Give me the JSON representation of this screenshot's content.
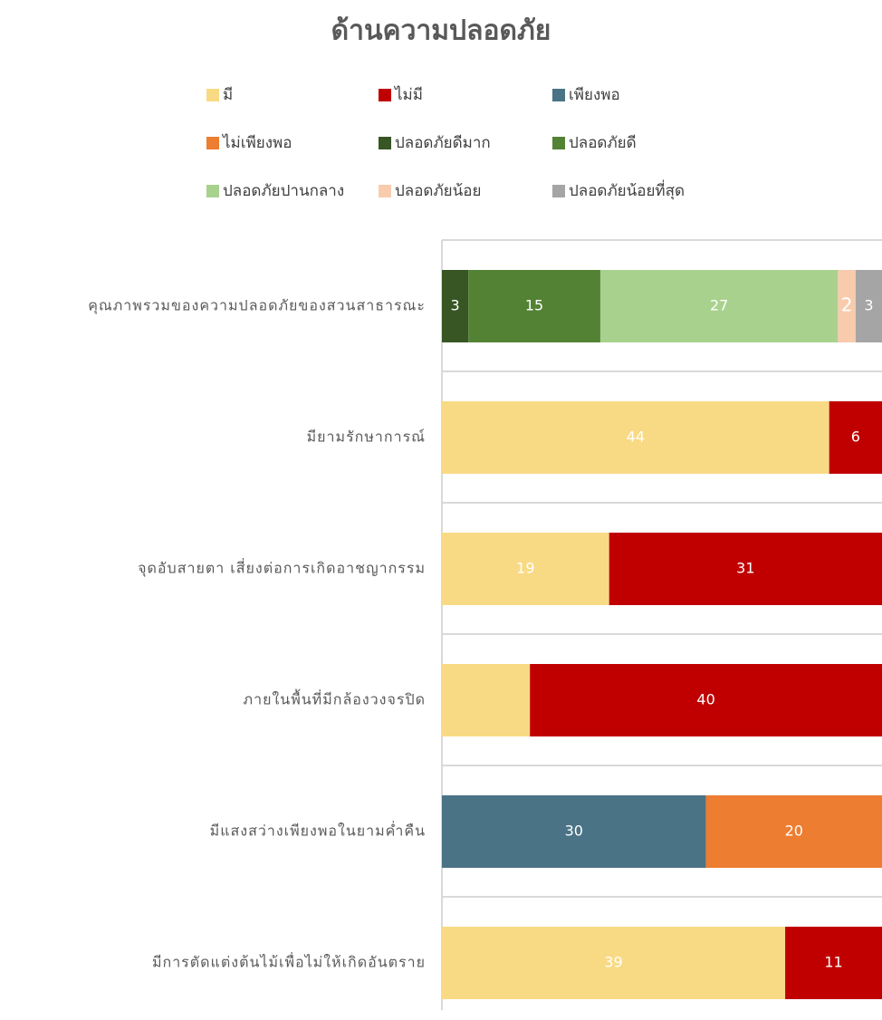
{
  "chart_data": {
    "type": "stacked-bar-horizontal",
    "title": "ด้านความปลอดภัย",
    "categories": [
      "คุณภาพรวมของความปลอดภัยของสวนสาธารณะ",
      "มียามรักษาการณ์",
      "จุดอับสายตา เสี่ยงต่อการเกิดอาชญากรรม",
      "ภายในพื้นที่มีกล้องวงจรปิด",
      "มีแสงสว่างเพียงพอในยามค่ำคืน",
      "มีการตัดแต่งต้นไม้เพื่อไม่ให้เกิดอันตราย"
    ],
    "series": [
      {
        "name": "มี",
        "color": "#f9da84",
        "values": [
          null,
          44,
          19,
          10,
          null,
          39
        ],
        "value_labels": [
          null,
          "44",
          "19",
          null,
          null,
          "39"
        ]
      },
      {
        "name": "ไม่มี",
        "color": "#c00000",
        "values": [
          null,
          6,
          31,
          40,
          null,
          11
        ]
      },
      {
        "name": "เพียงพอ",
        "color": "#4a7385",
        "values": [
          null,
          null,
          null,
          null,
          30,
          null
        ]
      },
      {
        "name": "ไม่เพียงพอ",
        "color": "#ed7d31",
        "values": [
          null,
          null,
          null,
          null,
          20,
          null
        ]
      },
      {
        "name": "ปลอดภัยดีมาก",
        "color": "#375623",
        "values": [
          3,
          null,
          null,
          null,
          null,
          null
        ]
      },
      {
        "name": "ปลอดภัยดี",
        "color": "#548235",
        "values": [
          15,
          null,
          null,
          null,
          null,
          null
        ]
      },
      {
        "name": "ปลอดภัยปานกลาง",
        "color": "#a9d18e",
        "values": [
          27,
          null,
          null,
          null,
          null,
          null
        ]
      },
      {
        "name": "ปลอดภัยน้อย",
        "color": "#f8cbad",
        "values": [
          2,
          null,
          null,
          null,
          null,
          null
        ]
      },
      {
        "name": "ปลอดภัยน้อยที่สุด",
        "color": "#a5a5a5",
        "values": [
          3,
          null,
          null,
          null,
          null,
          null
        ]
      }
    ],
    "xlim": [
      0,
      50
    ]
  }
}
